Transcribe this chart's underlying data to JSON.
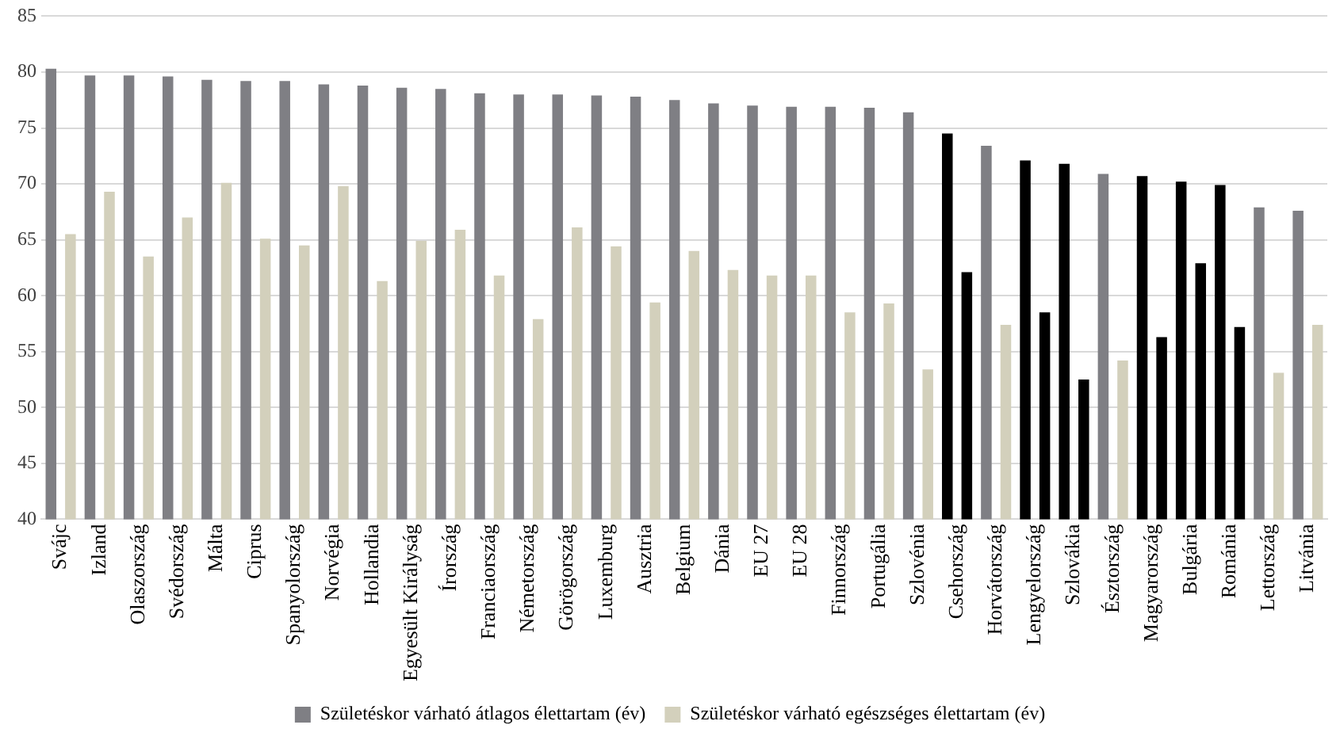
{
  "chart_data": {
    "type": "bar",
    "categories": [
      "Svájc",
      "Izland",
      "Olaszország",
      "Svédország",
      "Málta",
      "Ciprus",
      "Spanyolország",
      "Norvégia",
      "Hollandia",
      "Egyesült Királyság",
      "Írország",
      "Franciaország",
      "Németország",
      "Görögország",
      "Luxemburg",
      "Ausztria",
      "Belgium",
      "Dánia",
      "EU 27",
      "EU 28",
      "Finnország",
      "Portugália",
      "Szlovénia",
      "Csehország",
      "Horvátország",
      "Lengyelország",
      "Szlovákia",
      "Észtország",
      "Magyarország",
      "Bulgária",
      "Románia",
      "Lettország",
      "Litvánia"
    ],
    "series": [
      {
        "name": "Születéskor várható átlagos élettartam (év)",
        "color": "#7f7f84",
        "colors": [
          "#7f7f84",
          "#7f7f84",
          "#7f7f84",
          "#7f7f84",
          "#7f7f84",
          "#7f7f84",
          "#7f7f84",
          "#7f7f84",
          "#7f7f84",
          "#7f7f84",
          "#7f7f84",
          "#7f7f84",
          "#7f7f84",
          "#7f7f84",
          "#7f7f84",
          "#7f7f84",
          "#7f7f84",
          "#7f7f84",
          "#7f7f84",
          "#7f7f84",
          "#7f7f84",
          "#7f7f84",
          "#7f7f84",
          "#000000",
          "#7f7f84",
          "#000000",
          "#000000",
          "#7f7f84",
          "#000000",
          "#000000",
          "#000000",
          "#7f7f84",
          "#7f7f84"
        ],
        "values": [
          80.3,
          79.7,
          79.7,
          79.6,
          79.3,
          79.2,
          79.2,
          78.9,
          78.8,
          78.6,
          78.5,
          78.1,
          78.0,
          78.0,
          77.9,
          77.8,
          77.5,
          77.2,
          77.0,
          76.9,
          76.9,
          76.8,
          76.4,
          74.5,
          73.4,
          72.1,
          71.8,
          70.9,
          70.7,
          70.2,
          69.9,
          67.9,
          67.6
        ]
      },
      {
        "name": "Születéskor várható egészséges élettartam (év)",
        "color": "#d3d0bc",
        "colors": [
          "#d3d0bc",
          "#d3d0bc",
          "#d3d0bc",
          "#d3d0bc",
          "#d3d0bc",
          "#d3d0bc",
          "#d3d0bc",
          "#d3d0bc",
          "#d3d0bc",
          "#d3d0bc",
          "#d3d0bc",
          "#d3d0bc",
          "#d3d0bc",
          "#d3d0bc",
          "#d3d0bc",
          "#d3d0bc",
          "#d3d0bc",
          "#d3d0bc",
          "#d3d0bc",
          "#d3d0bc",
          "#d3d0bc",
          "#d3d0bc",
          "#d3d0bc",
          "#000000",
          "#d3d0bc",
          "#000000",
          "#000000",
          "#d3d0bc",
          "#000000",
          "#000000",
          "#000000",
          "#d3d0bc",
          "#d3d0bc"
        ],
        "values": [
          65.5,
          69.3,
          63.5,
          67.0,
          70.1,
          65.1,
          64.5,
          69.8,
          61.3,
          64.9,
          65.9,
          61.8,
          57.9,
          66.1,
          64.4,
          59.4,
          64.0,
          62.3,
          61.8,
          61.8,
          58.5,
          59.3,
          53.4,
          62.1,
          57.4,
          58.5,
          52.5,
          54.2,
          56.3,
          62.9,
          57.2,
          53.1,
          57.4
        ]
      }
    ],
    "ylim": [
      40,
      85
    ],
    "yticks": [
      40,
      45,
      50,
      55,
      60,
      65,
      70,
      75,
      80,
      85
    ],
    "grid": "y",
    "legend": "bottom"
  }
}
